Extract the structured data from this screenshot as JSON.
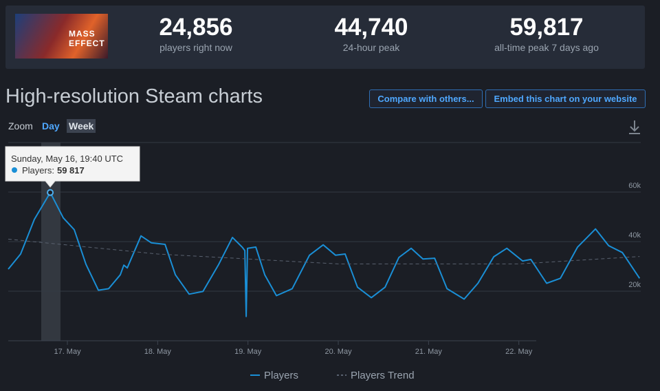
{
  "game": {
    "logo": "MASS EFFECT"
  },
  "stats": [
    {
      "value": "24,856",
      "label": "players right now"
    },
    {
      "value": "44,740",
      "label": "24-hour peak"
    },
    {
      "value": "59,817",
      "label": "all-time peak 7 days ago"
    }
  ],
  "header": {
    "title": "High-resolution Steam charts"
  },
  "buttons": [
    "Compare with others...",
    "Embed this chart on your website"
  ],
  "zoom": {
    "label": "Zoom",
    "options": [
      "Day",
      "Week"
    ]
  },
  "tooltip": {
    "date": "Sunday, May 16, 19:40 UTC",
    "series": "Players:",
    "value": "59 817"
  },
  "chart_data": {
    "type": "line",
    "xlim": [
      16.345,
      23.35
    ],
    "ylim": [
      0,
      80000
    ],
    "xticks": [
      {
        "value": 17,
        "label": "17. May"
      },
      {
        "value": 18,
        "label": "18. May"
      },
      {
        "value": 19,
        "label": "19. May"
      },
      {
        "value": 20,
        "label": "20. May"
      },
      {
        "value": 21,
        "label": "21. May"
      },
      {
        "value": 22,
        "label": "22. May"
      }
    ],
    "yticks": [
      {
        "value": 20000,
        "label": "20k"
      },
      {
        "value": 40000,
        "label": "40k"
      },
      {
        "value": 60000,
        "label": "60k"
      }
    ],
    "grid": true,
    "legend": "bottom",
    "series": [
      {
        "name": "Players",
        "color": "#1a8fd6",
        "dash": false,
        "x": [
          16.345,
          16.482,
          16.634,
          16.81,
          16.954,
          17.076,
          17.206,
          17.343,
          17.457,
          17.586,
          17.625,
          17.663,
          17.815,
          17.93,
          18.082,
          18.196,
          18.348,
          18.501,
          18.676,
          18.828,
          18.935,
          18.965,
          18.98,
          18.995,
          19.087,
          19.186,
          19.315,
          19.49,
          19.681,
          19.833,
          19.97,
          20.076,
          20.213,
          20.366,
          20.518,
          20.671,
          20.808,
          20.938,
          21.067,
          21.204,
          21.394,
          21.547,
          21.722,
          21.867,
          22.042,
          22.133,
          22.308,
          22.46,
          22.65,
          22.849,
          22.994,
          23.146,
          23.337
        ],
        "values": [
          28900,
          35000,
          49000,
          59817,
          49600,
          44800,
          30800,
          20400,
          21000,
          26600,
          30500,
          29400,
          42300,
          39500,
          38900,
          26600,
          18800,
          19900,
          30800,
          41700,
          37800,
          36400,
          9800,
          37300,
          37800,
          26600,
          18200,
          21000,
          34500,
          38700,
          34500,
          35000,
          21600,
          17400,
          21600,
          33600,
          37300,
          33000,
          33300,
          21000,
          16800,
          23200,
          33900,
          37300,
          32200,
          32800,
          23200,
          25200,
          37800,
          45100,
          38400,
          35600,
          25200
        ]
      },
      {
        "name": "Players Trend",
        "color": "#5a6270",
        "dash": true,
        "x": [
          16.345,
          18.0,
          20.0,
          22.0,
          23.337
        ],
        "values": [
          41000,
          35000,
          31000,
          31000,
          34000
        ]
      }
    ]
  }
}
